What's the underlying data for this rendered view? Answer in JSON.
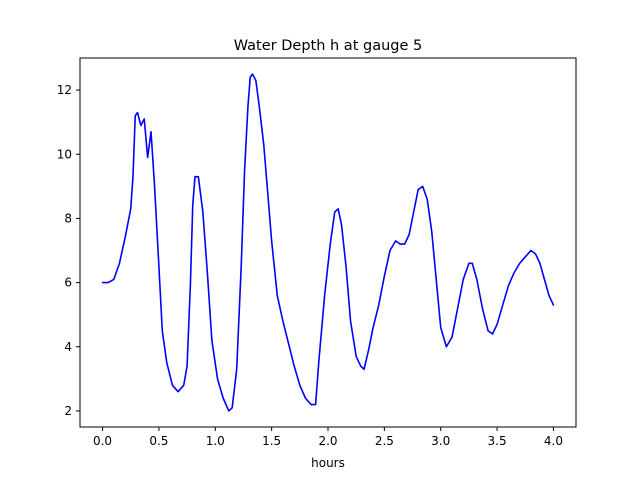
{
  "chart_data": {
    "type": "line",
    "title": "Water Depth h at gauge 5",
    "xlabel": "hours",
    "ylabel": "",
    "xlim": [
      -0.2,
      4.2
    ],
    "ylim": [
      1.5,
      13.0
    ],
    "xticks": [
      0.0,
      0.5,
      1.0,
      1.5,
      2.0,
      2.5,
      3.0,
      3.5,
      4.0
    ],
    "xtick_labels": [
      "0.0",
      "0.5",
      "1.0",
      "1.5",
      "2.0",
      "2.5",
      "3.0",
      "3.5",
      "4.0"
    ],
    "yticks": [
      2,
      4,
      6,
      8,
      10,
      12
    ],
    "ytick_labels": [
      "2",
      "4",
      "6",
      "8",
      "10",
      "12"
    ],
    "grid": false,
    "legend": "none",
    "series": [
      {
        "color": "#0000ff",
        "x": [
          0.0,
          0.05,
          0.1,
          0.15,
          0.2,
          0.25,
          0.27,
          0.29,
          0.31,
          0.34,
          0.37,
          0.4,
          0.43,
          0.46,
          0.5,
          0.53,
          0.57,
          0.62,
          0.67,
          0.72,
          0.75,
          0.78,
          0.8,
          0.82,
          0.85,
          0.89,
          0.93,
          0.97,
          1.02,
          1.07,
          1.12,
          1.15,
          1.19,
          1.23,
          1.26,
          1.29,
          1.31,
          1.33,
          1.36,
          1.39,
          1.43,
          1.47,
          1.5,
          1.55,
          1.6,
          1.65,
          1.7,
          1.75,
          1.8,
          1.85,
          1.89,
          1.92,
          1.97,
          2.02,
          2.06,
          2.09,
          2.12,
          2.16,
          2.2,
          2.25,
          2.29,
          2.32,
          2.36,
          2.4,
          2.45,
          2.5,
          2.55,
          2.6,
          2.64,
          2.68,
          2.72,
          2.76,
          2.8,
          2.84,
          2.88,
          2.92,
          2.96,
          3.0,
          3.05,
          3.1,
          3.15,
          3.2,
          3.25,
          3.28,
          3.32,
          3.37,
          3.42,
          3.46,
          3.5,
          3.55,
          3.6,
          3.65,
          3.7,
          3.75,
          3.8,
          3.84,
          3.88,
          3.92,
          3.96,
          4.0
        ],
        "y": [
          6.0,
          6.0,
          6.1,
          6.6,
          7.4,
          8.3,
          9.3,
          11.2,
          11.3,
          10.9,
          11.1,
          9.9,
          10.7,
          9.1,
          6.5,
          4.5,
          3.5,
          2.8,
          2.6,
          2.8,
          3.4,
          6.0,
          8.4,
          9.3,
          9.3,
          8.2,
          6.3,
          4.2,
          3.0,
          2.4,
          2.0,
          2.1,
          3.3,
          6.5,
          9.5,
          11.5,
          12.4,
          12.5,
          12.3,
          11.5,
          10.3,
          8.6,
          7.3,
          5.6,
          4.8,
          4.1,
          3.4,
          2.8,
          2.4,
          2.2,
          2.2,
          3.6,
          5.6,
          7.2,
          8.2,
          8.3,
          7.8,
          6.5,
          4.8,
          3.7,
          3.4,
          3.3,
          3.9,
          4.6,
          5.3,
          6.2,
          7.0,
          7.3,
          7.2,
          7.2,
          7.5,
          8.2,
          8.9,
          9.0,
          8.6,
          7.6,
          6.1,
          4.6,
          4.0,
          4.3,
          5.2,
          6.1,
          6.6,
          6.6,
          6.1,
          5.2,
          4.5,
          4.4,
          4.7,
          5.3,
          5.9,
          6.3,
          6.6,
          6.8,
          7.0,
          6.9,
          6.6,
          6.1,
          5.6,
          5.3
        ]
      }
    ]
  }
}
